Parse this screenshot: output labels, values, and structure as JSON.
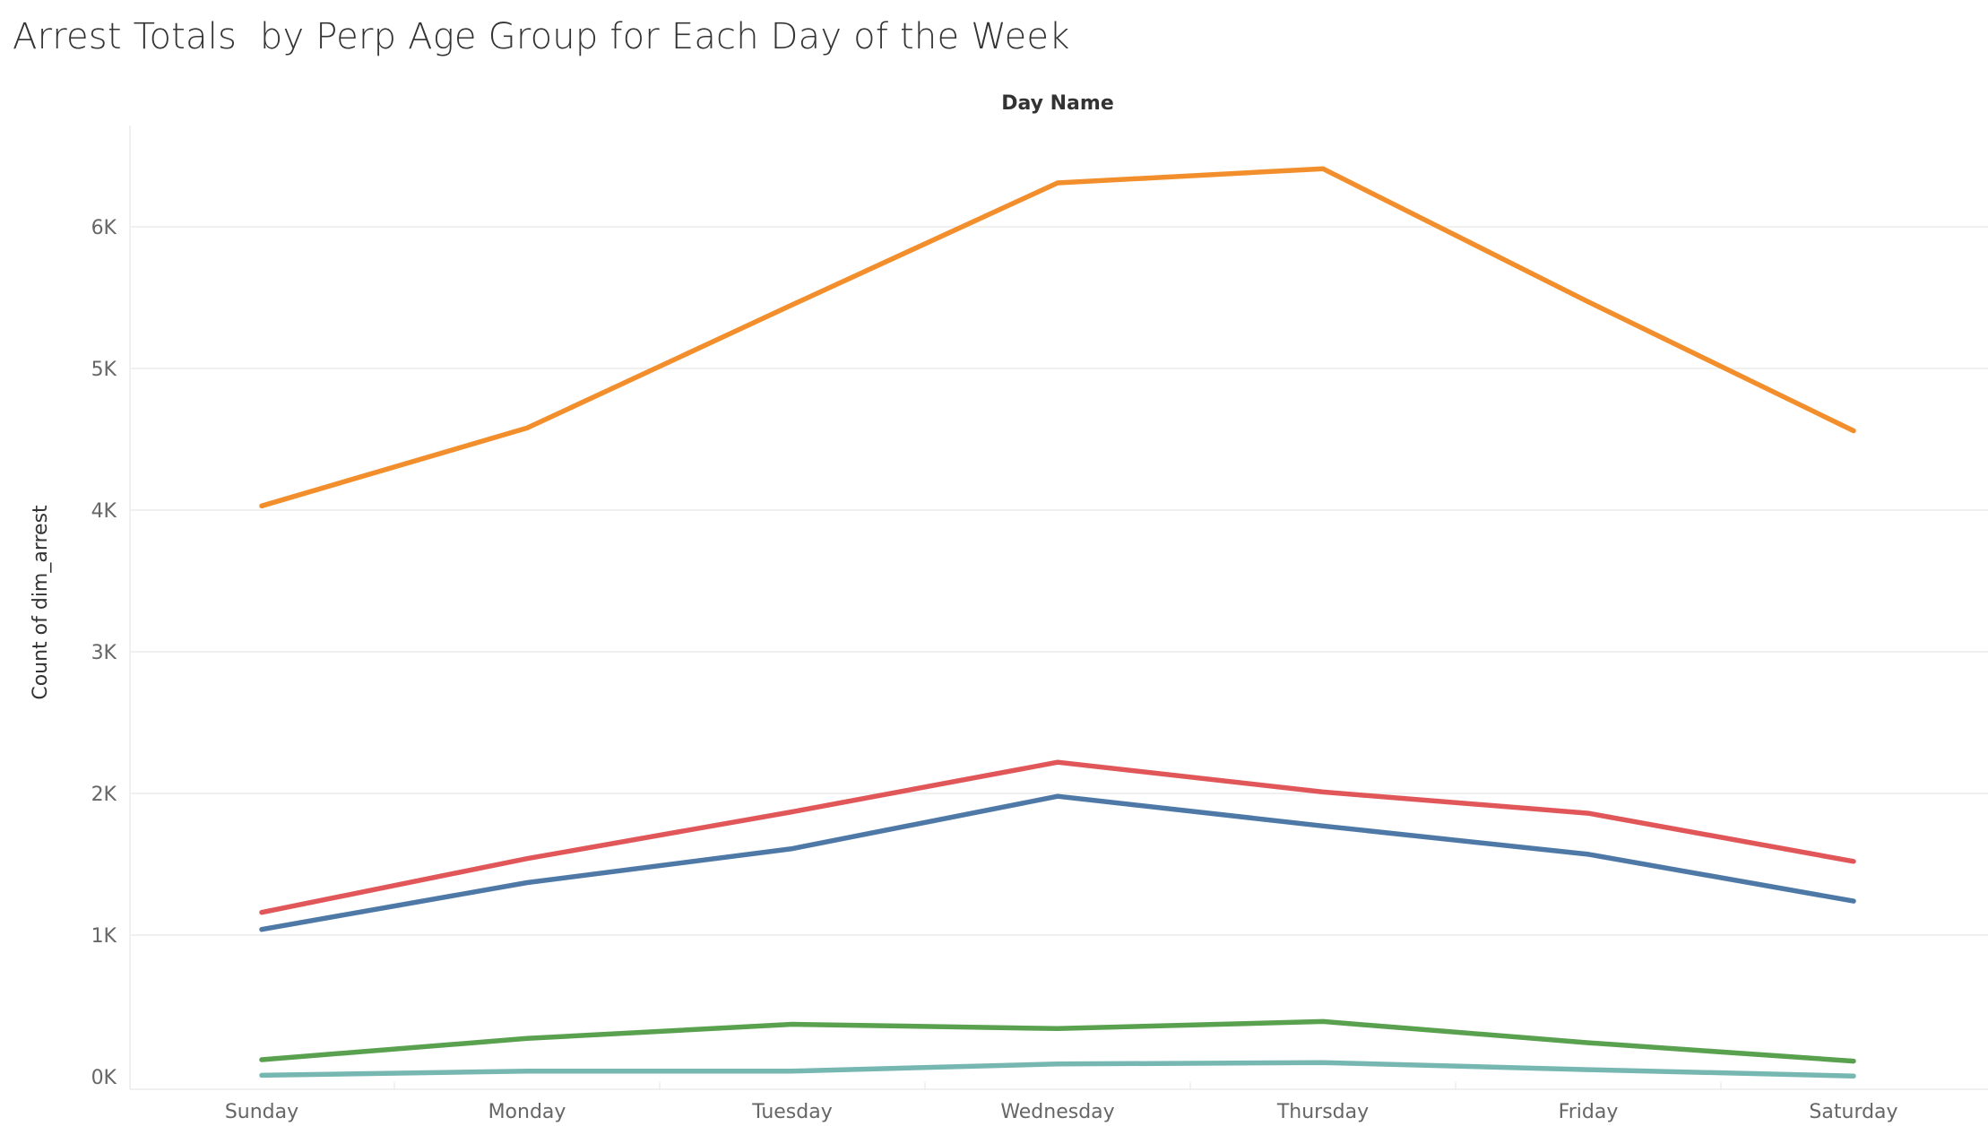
{
  "chart_data": {
    "type": "line",
    "title": "Arrest Totals  by Perp Age Group for Each Day of the Week",
    "column_header": "Day Name",
    "ylabel": "Count of dim_arrest",
    "ylim": [
      0,
      6700
    ],
    "yticks": [
      {
        "value": 0,
        "label": "0K"
      },
      {
        "value": 1000,
        "label": "1K"
      },
      {
        "value": 2000,
        "label": "2K"
      },
      {
        "value": 3000,
        "label": "3K"
      },
      {
        "value": 4000,
        "label": "4K"
      },
      {
        "value": 5000,
        "label": "5K"
      },
      {
        "value": 6000,
        "label": "6K"
      }
    ],
    "categories": [
      "Sunday",
      "Monday",
      "Tuesday",
      "Wednesday",
      "Thursday",
      "Friday",
      "Saturday"
    ],
    "grid": true,
    "legend": "none",
    "series": [
      {
        "color": "#F28E2B",
        "values": [
          4030,
          4580,
          5450,
          6310,
          6410,
          5470,
          4560
        ]
      },
      {
        "color": "#E15759",
        "values": [
          1160,
          1540,
          1870,
          2220,
          2010,
          1860,
          1520
        ]
      },
      {
        "color": "#4E79A7",
        "values": [
          1040,
          1370,
          1610,
          1980,
          1770,
          1570,
          1240
        ]
      },
      {
        "color": "#59A14F",
        "values": [
          120,
          270,
          370,
          340,
          390,
          240,
          110
        ]
      },
      {
        "color": "#76B7B2",
        "values": [
          10,
          40,
          40,
          90,
          100,
          50,
          5
        ]
      }
    ]
  }
}
